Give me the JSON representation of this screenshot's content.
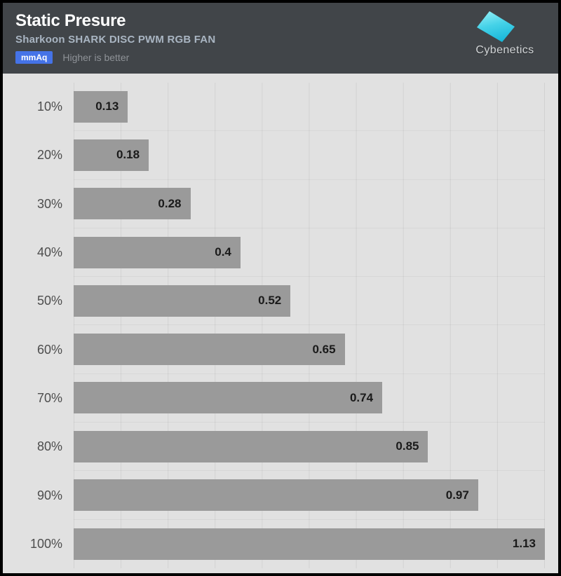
{
  "header": {
    "title": "Static Presure",
    "subtitle": "Sharkoon SHARK DISC PWM RGB FAN",
    "unit_badge": "mmAq",
    "note": "Higher is better",
    "logo_text": "Cybenetics"
  },
  "colors": {
    "header_bg": "#414549",
    "title": "#ffffff",
    "subtitle": "#a9b5c2",
    "note": "#8e9297",
    "badge_bg": "#4573e7",
    "badge_text": "#ffffff",
    "chart_bg": "#e1e1e1",
    "gridline": "#d2d2d2",
    "bar": "#9a9a9a",
    "bar_label": "#1a1a1a",
    "category_label": "#4d4d4d",
    "logo_cyan_light": "#8decf5",
    "logo_cyan_dark": "#17b7d9"
  },
  "chart_data": {
    "type": "bar",
    "orientation": "horizontal",
    "title": "Static Presure",
    "subtitle": "Sharkoon SHARK DISC PWM RGB FAN",
    "unit": "mmAq",
    "note": "Higher is better",
    "categories": [
      "10%",
      "20%",
      "30%",
      "40%",
      "50%",
      "60%",
      "70%",
      "80%",
      "90%",
      "100%"
    ],
    "values": [
      0.13,
      0.18,
      0.28,
      0.4,
      0.52,
      0.65,
      0.74,
      0.85,
      0.97,
      1.13
    ],
    "xlim": [
      0,
      1.13
    ],
    "grid_divisions": 10,
    "grid": true,
    "legend": false,
    "value_labels": "inside-end"
  }
}
